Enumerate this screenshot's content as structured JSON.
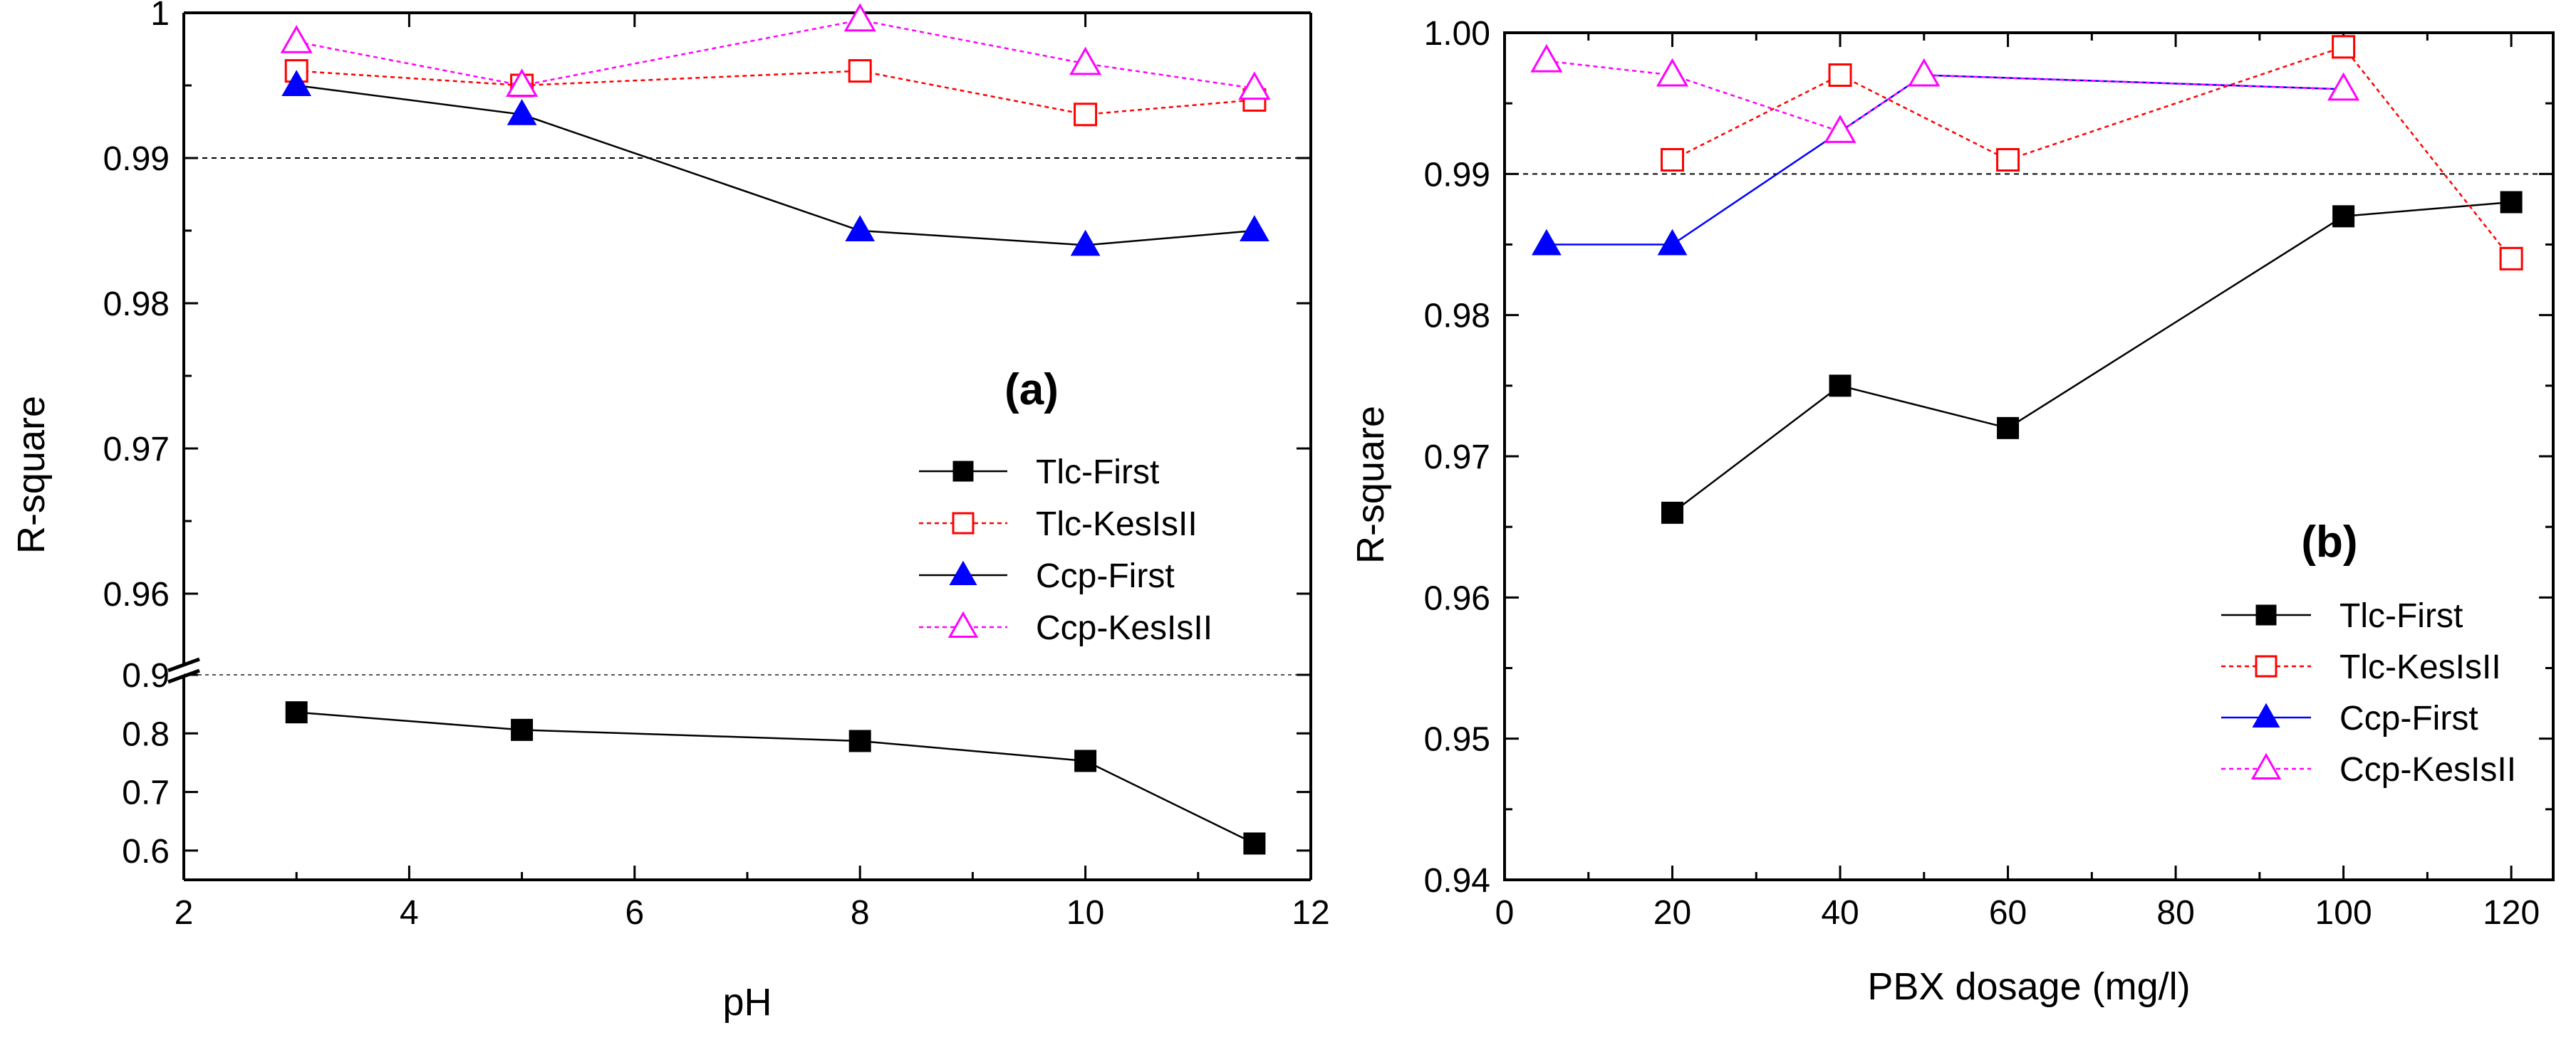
{
  "chart_data": [
    {
      "type": "line",
      "panel_label": "(a)",
      "xlabel": "pH",
      "ylabel": "R-square",
      "xlim": [
        2,
        12
      ],
      "x_ticks": [
        2,
        4,
        6,
        8,
        10,
        12
      ],
      "x_tick_labels": [
        "2",
        "4",
        "6",
        "8",
        "10",
        "12"
      ],
      "y_axis_broken": true,
      "upper_ylim": [
        0.955,
        1.0
      ],
      "upper_y_ticks": [
        0.96,
        0.97,
        0.98,
        0.99,
        1.0
      ],
      "upper_y_tick_labels": [
        "0.96",
        "0.97",
        "0.98",
        "0.99",
        "1"
      ],
      "lower_ylim": [
        0.55,
        0.9
      ],
      "lower_y_ticks": [
        0.6,
        0.7,
        0.8,
        0.9
      ],
      "lower_y_tick_labels": [
        "0.6",
        "0.7",
        "0.8",
        "0.9"
      ],
      "reference_lines": [
        0.99,
        0.9
      ],
      "legend_position": "right",
      "series": [
        {
          "name": "Tlc-First",
          "marker": "filled-square",
          "color": "#000000",
          "dash": "solid",
          "x": [
            3,
            5,
            8,
            10,
            11.5
          ],
          "y": [
            0.836,
            0.806,
            0.787,
            0.753,
            0.612
          ]
        },
        {
          "name": "Tlc-KesIsII",
          "marker": "open-square",
          "color": "#ff0000",
          "dash": "dotted",
          "x": [
            3,
            5,
            8,
            10,
            11.5
          ],
          "y": [
            0.996,
            0.995,
            0.996,
            0.993,
            0.994
          ]
        },
        {
          "name": "Ccp-First",
          "marker": "filled-triangle",
          "color": "#0000ff",
          "line_color": "#000000",
          "dash": "solid",
          "x": [
            3,
            5,
            8,
            10,
            11.5
          ],
          "y": [
            0.995,
            0.993,
            0.985,
            0.984,
            0.985
          ]
        },
        {
          "name": "Ccp-KesIsII",
          "marker": "open-triangle",
          "color": "#ff00ff",
          "dash": "dotted",
          "x": [
            3,
            5,
            8,
            10,
            11.5
          ],
          "y": [
            0.998,
            0.995,
            0.9995,
            0.9965,
            0.9948
          ]
        }
      ]
    },
    {
      "type": "line",
      "panel_label": "(b)",
      "xlabel": "PBX dosage (mg/l)",
      "ylabel": "R-square",
      "xlim": [
        0,
        125
      ],
      "x_ticks": [
        0,
        20,
        40,
        60,
        80,
        100,
        120
      ],
      "x_tick_labels": [
        "0",
        "20",
        "40",
        "60",
        "80",
        "100",
        "120"
      ],
      "ylim": [
        0.94,
        1.0
      ],
      "y_ticks": [
        0.94,
        0.95,
        0.96,
        0.97,
        0.98,
        0.99,
        1.0
      ],
      "y_tick_labels": [
        "0.94",
        "0.95",
        "0.96",
        "0.97",
        "0.98",
        "0.99",
        "1.00"
      ],
      "reference_lines": [
        0.99
      ],
      "legend_position": "bottom-right",
      "series": [
        {
          "name": "Tlc-First",
          "marker": "filled-square",
          "color": "#000000",
          "dash": "solid",
          "x": [
            20,
            40,
            60,
            100,
            120
          ],
          "y": [
            0.966,
            0.975,
            0.972,
            0.987,
            0.988
          ]
        },
        {
          "name": "Tlc-KesIsII",
          "marker": "open-square",
          "color": "#ff0000",
          "dash": "dotted",
          "x": [
            20,
            40,
            60,
            100,
            120
          ],
          "y": [
            0.991,
            0.997,
            0.991,
            0.999,
            0.984
          ]
        },
        {
          "name": "Ccp-First",
          "marker": "filled-triangle",
          "color": "#0000ff",
          "dash": "solid",
          "x": [
            5,
            20,
            40,
            50,
            100
          ],
          "y": [
            0.985,
            0.985,
            0.993,
            0.997,
            0.996
          ]
        },
        {
          "name": "Ccp-KesIsII",
          "marker": "open-triangle",
          "color": "#ff00ff",
          "dash": "dotted",
          "x": [
            5,
            20,
            40,
            50,
            100
          ],
          "y": [
            0.998,
            0.997,
            0.993,
            0.997,
            0.996
          ]
        }
      ]
    }
  ]
}
